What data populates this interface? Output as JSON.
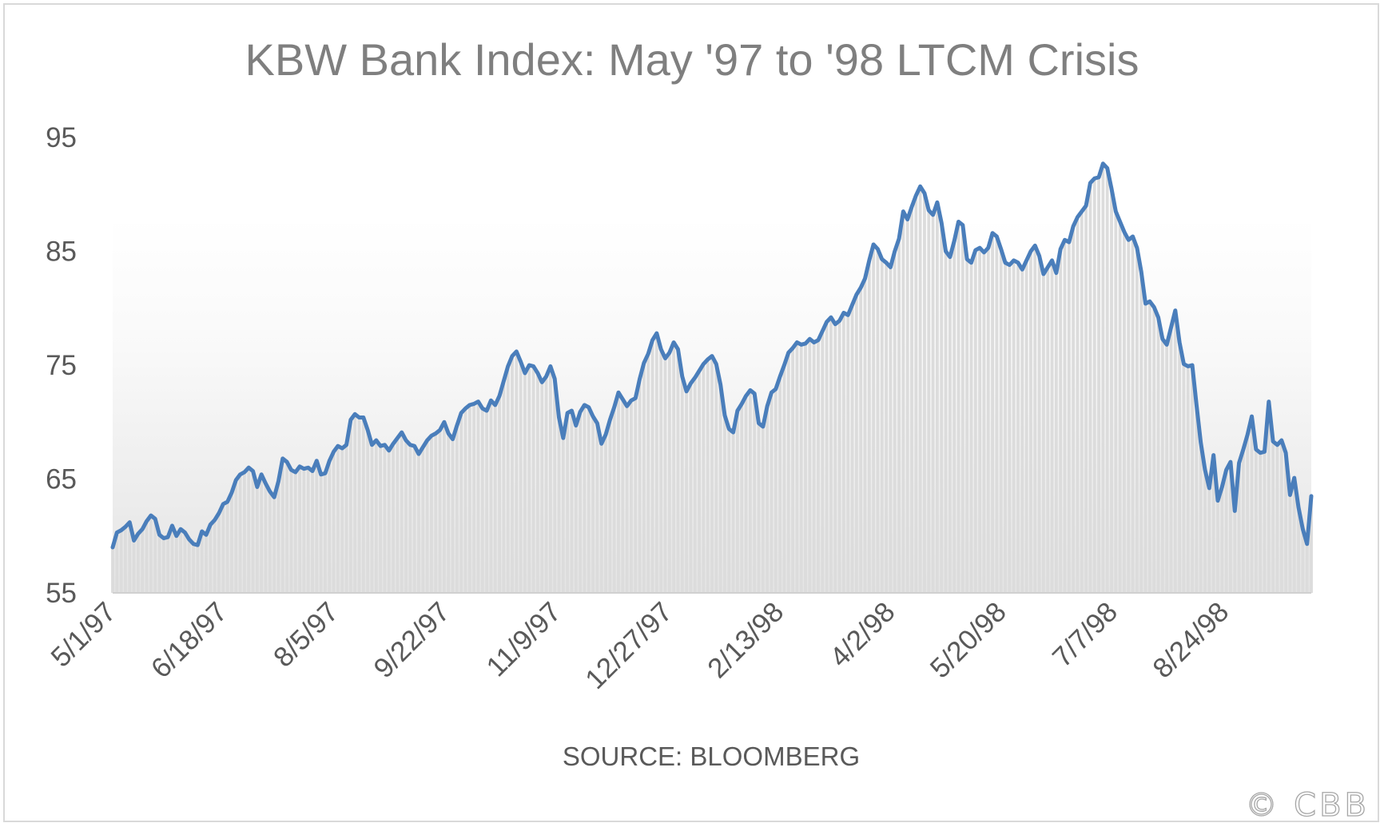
{
  "watermark": "© CBB",
  "chart_data": {
    "type": "area",
    "title": "KBW Bank Index: May '97 to '98 LTCM Crisis",
    "subtitle": "SOURCE: BLOOMBERG",
    "xlabel": "",
    "ylabel": "",
    "ylim": [
      55,
      95
    ],
    "yticks": [
      55,
      65,
      75,
      85,
      95
    ],
    "x_start": "5/1/97",
    "x_end": "9/30/98",
    "xticks": [
      "5/1/97",
      "6/18/97",
      "8/5/97",
      "9/22/97",
      "11/9/97",
      "12/27/97",
      "2/13/98",
      "4/2/98",
      "5/20/98",
      "7/7/98",
      "8/24/98"
    ],
    "grid": false,
    "legend": "none",
    "colors": {
      "line": "#4a7ebb",
      "fill_bars": "#dcdcdc"
    },
    "series": [
      {
        "values": [
          59.0,
          60.3,
          60.5,
          60.8,
          61.2,
          59.6,
          60.2,
          60.6,
          61.3,
          61.8,
          61.5,
          60.1,
          59.8,
          59.9,
          60.9,
          60.0,
          60.6,
          60.3,
          59.7,
          59.3,
          59.2,
          60.4,
          60.1,
          61.0,
          61.4,
          62.0,
          62.8,
          63.0,
          63.8,
          64.9,
          65.4,
          65.6,
          66.0,
          65.7,
          64.3,
          65.4,
          64.6,
          63.9,
          63.4,
          64.8,
          66.8,
          66.5,
          65.8,
          65.6,
          66.1,
          65.9,
          66.0,
          65.7,
          66.6,
          65.4,
          65.5,
          66.6,
          67.4,
          67.9,
          67.7,
          68.0,
          70.2,
          70.7,
          70.4,
          70.4,
          69.3,
          68.0,
          68.4,
          67.9,
          68.0,
          67.5,
          68.1,
          68.6,
          69.1,
          68.4,
          68.0,
          67.9,
          67.2,
          67.8,
          68.4,
          68.8,
          69.0,
          69.3,
          70.0,
          69.0,
          68.5,
          69.7,
          70.8,
          71.2,
          71.5,
          71.6,
          71.8,
          71.2,
          71.0,
          71.9,
          71.5,
          72.3,
          73.6,
          74.9,
          75.8,
          76.2,
          75.3,
          74.3,
          75.0,
          74.9,
          74.3,
          73.5,
          74.0,
          74.9,
          73.8,
          70.4,
          68.6,
          70.8,
          71.0,
          69.7,
          70.9,
          71.5,
          71.3,
          70.5,
          69.9,
          68.1,
          68.9,
          70.2,
          71.3,
          72.6,
          72.0,
          71.4,
          71.9,
          72.1,
          73.8,
          75.2,
          76.0,
          77.2,
          77.8,
          76.4,
          75.6,
          76.1,
          77.0,
          76.4,
          74.0,
          72.7,
          73.4,
          73.9,
          74.5,
          75.1,
          75.5,
          75.8,
          75.1,
          73.3,
          70.6,
          69.4,
          69.1,
          71.0,
          71.6,
          72.3,
          72.8,
          72.5,
          69.9,
          69.6,
          71.4,
          72.6,
          72.9,
          74.0,
          75.0,
          76.1,
          76.5,
          77.0,
          76.8,
          76.9,
          77.3,
          77.0,
          77.2,
          78.0,
          78.8,
          79.2,
          78.6,
          78.9,
          79.6,
          79.4,
          80.3,
          81.2,
          81.8,
          82.6,
          84.2,
          85.6,
          85.2,
          84.3,
          84.0,
          83.6,
          85.0,
          86.1,
          88.5,
          87.8,
          88.9,
          89.9,
          90.7,
          90.1,
          88.6,
          88.2,
          89.3,
          87.5,
          85.0,
          84.5,
          85.9,
          87.6,
          87.3,
          84.3,
          84.0,
          85.1,
          85.3,
          84.9,
          85.3,
          86.6,
          86.3,
          85.2,
          84.0,
          83.8,
          84.2,
          84.0,
          83.4,
          84.2,
          85.0,
          85.5,
          84.6,
          83.0,
          83.6,
          84.2,
          83.1,
          85.2,
          86.0,
          85.8,
          87.2,
          88.0,
          88.5,
          89.0,
          91.0,
          91.4,
          91.5,
          92.7,
          92.3,
          90.5,
          88.5,
          87.6,
          86.7,
          86.0,
          86.3,
          85.3,
          83.2,
          80.4,
          80.6,
          80.1,
          79.2,
          77.3,
          76.8,
          78.3,
          79.8,
          77.0,
          75.1,
          74.9,
          75.0,
          71.5,
          68.2,
          65.8,
          64.2,
          67.1,
          63.1,
          64.3,
          65.8,
          66.5,
          62.2,
          66.4,
          67.6,
          68.9,
          70.5,
          67.6,
          67.3,
          67.4,
          71.8,
          68.3,
          68.0,
          68.4,
          67.3,
          63.6,
          65.1,
          62.5,
          60.6,
          59.3,
          63.5
        ]
      }
    ]
  }
}
